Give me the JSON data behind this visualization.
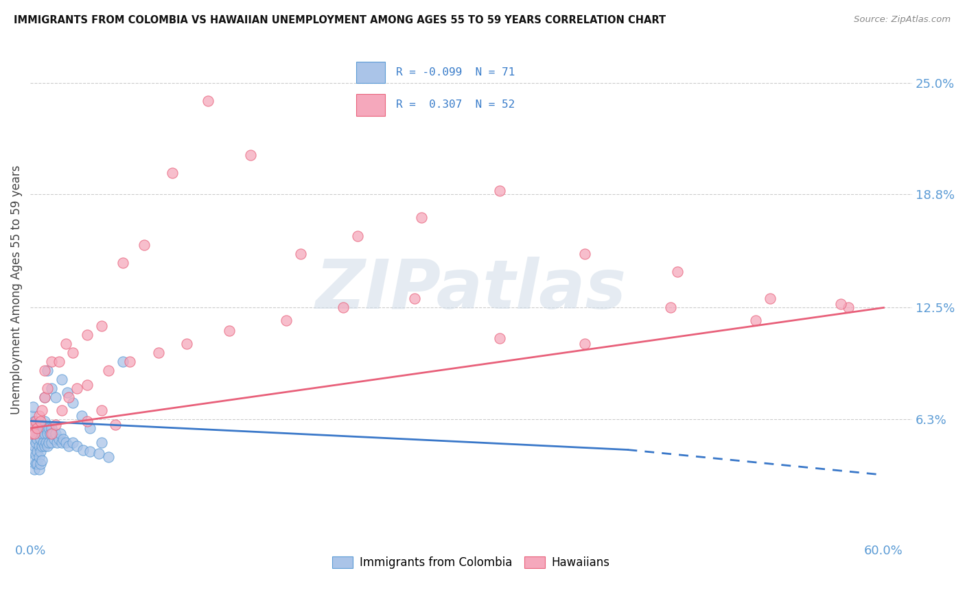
{
  "title": "IMMIGRANTS FROM COLOMBIA VS HAWAIIAN UNEMPLOYMENT AMONG AGES 55 TO 59 YEARS CORRELATION CHART",
  "source": "Source: ZipAtlas.com",
  "ylabel": "Unemployment Among Ages 55 to 59 years",
  "xlim": [
    0.0,
    0.62
  ],
  "ylim": [
    -0.005,
    0.275
  ],
  "xtick_labels": [
    "0.0%",
    "60.0%"
  ],
  "xtick_positions": [
    0.0,
    0.6
  ],
  "ytick_labels": [
    "25.0%",
    "18.8%",
    "12.5%",
    "6.3%"
  ],
  "ytick_positions": [
    0.25,
    0.188,
    0.125,
    0.063
  ],
  "blue_R": -0.099,
  "blue_N": 71,
  "pink_R": 0.307,
  "pink_N": 52,
  "blue_color": "#aac4e8",
  "pink_color": "#f5a8bc",
  "blue_edge_color": "#5b9bd5",
  "pink_edge_color": "#e8607a",
  "blue_line_color": "#3a78c9",
  "pink_line_color": "#e8607a",
  "watermark": "ZIPatlas",
  "legend_label_blue": "Immigrants from Colombia",
  "legend_label_pink": "Hawaiians",
  "blue_trend_x0": 0.0,
  "blue_trend_x_solid_end": 0.42,
  "blue_trend_x_dash_end": 0.6,
  "blue_trend_y0": 0.062,
  "blue_trend_y_solid_end": 0.046,
  "blue_trend_y_dash_end": 0.032,
  "pink_trend_x0": 0.0,
  "pink_trend_x_end": 0.6,
  "pink_trend_y0": 0.058,
  "pink_trend_y_end": 0.125,
  "blue_scatter_x": [
    0.001,
    0.001,
    0.002,
    0.002,
    0.002,
    0.002,
    0.003,
    0.003,
    0.003,
    0.003,
    0.003,
    0.004,
    0.004,
    0.004,
    0.004,
    0.005,
    0.005,
    0.005,
    0.005,
    0.006,
    0.006,
    0.006,
    0.006,
    0.007,
    0.007,
    0.007,
    0.007,
    0.008,
    0.008,
    0.008,
    0.009,
    0.009,
    0.01,
    0.01,
    0.01,
    0.011,
    0.011,
    0.012,
    0.012,
    0.013,
    0.013,
    0.014,
    0.015,
    0.015,
    0.016,
    0.017,
    0.018,
    0.019,
    0.02,
    0.021,
    0.022,
    0.023,
    0.025,
    0.027,
    0.03,
    0.033,
    0.037,
    0.042,
    0.048,
    0.055,
    0.065,
    0.01,
    0.012,
    0.015,
    0.018,
    0.022,
    0.026,
    0.03,
    0.036,
    0.042,
    0.05
  ],
  "blue_scatter_y": [
    0.065,
    0.055,
    0.07,
    0.06,
    0.052,
    0.045,
    0.062,
    0.055,
    0.048,
    0.04,
    0.035,
    0.058,
    0.05,
    0.043,
    0.038,
    0.06,
    0.052,
    0.045,
    0.038,
    0.055,
    0.048,
    0.042,
    0.035,
    0.06,
    0.052,
    0.045,
    0.038,
    0.055,
    0.048,
    0.04,
    0.058,
    0.05,
    0.062,
    0.055,
    0.048,
    0.058,
    0.05,
    0.055,
    0.048,
    0.058,
    0.05,
    0.055,
    0.058,
    0.05,
    0.055,
    0.052,
    0.055,
    0.05,
    0.052,
    0.055,
    0.05,
    0.052,
    0.05,
    0.048,
    0.05,
    0.048,
    0.046,
    0.045,
    0.044,
    0.042,
    0.095,
    0.075,
    0.09,
    0.08,
    0.075,
    0.085,
    0.078,
    0.072,
    0.065,
    0.058,
    0.05
  ],
  "pink_scatter_x": [
    0.001,
    0.002,
    0.003,
    0.004,
    0.005,
    0.006,
    0.007,
    0.008,
    0.01,
    0.012,
    0.015,
    0.018,
    0.022,
    0.027,
    0.033,
    0.04,
    0.05,
    0.06,
    0.01,
    0.015,
    0.02,
    0.025,
    0.03,
    0.04,
    0.05,
    0.065,
    0.08,
    0.1,
    0.125,
    0.155,
    0.19,
    0.23,
    0.275,
    0.33,
    0.39,
    0.455,
    0.52,
    0.575,
    0.04,
    0.055,
    0.07,
    0.09,
    0.11,
    0.14,
    0.18,
    0.22,
    0.27,
    0.33,
    0.39,
    0.45,
    0.51,
    0.57
  ],
  "pink_scatter_y": [
    0.055,
    0.06,
    0.055,
    0.062,
    0.058,
    0.065,
    0.062,
    0.068,
    0.075,
    0.08,
    0.055,
    0.06,
    0.068,
    0.075,
    0.08,
    0.062,
    0.068,
    0.06,
    0.09,
    0.095,
    0.095,
    0.105,
    0.1,
    0.11,
    0.115,
    0.15,
    0.16,
    0.2,
    0.24,
    0.21,
    0.155,
    0.165,
    0.175,
    0.19,
    0.155,
    0.145,
    0.13,
    0.125,
    0.082,
    0.09,
    0.095,
    0.1,
    0.105,
    0.112,
    0.118,
    0.125,
    0.13,
    0.108,
    0.105,
    0.125,
    0.118,
    0.127
  ]
}
